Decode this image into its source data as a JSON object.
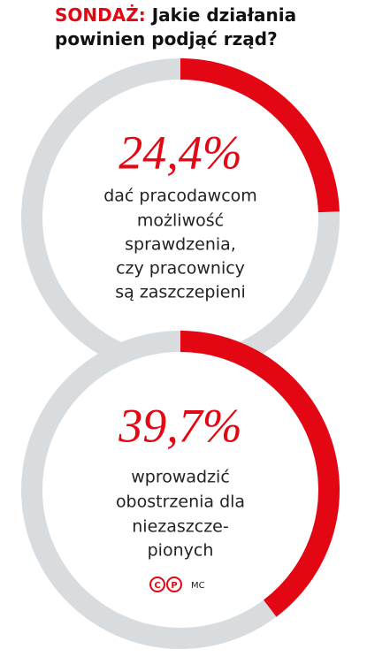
{
  "title_prefix": "SONDAŻ:",
  "title": "Jakie działania powinien podjąć rząd?",
  "chart_data": [
    {
      "type": "donut",
      "values": [
        24.4
      ],
      "value_labels": [
        "24,4%"
      ],
      "color": "#e30613",
      "track_color": "#d9dcdf",
      "label_lines": [
        "dać pracodawcom",
        "możliwość",
        "sprawdzenia,",
        "czy pracownicy",
        "są zaszczepieni"
      ]
    },
    {
      "type": "donut",
      "values": [
        39.7
      ],
      "value_labels": [
        "39,7%"
      ],
      "color": "#e30613",
      "track_color": "#d9dcdf",
      "label_lines": [
        "wprowadzić",
        "obostrzenia dla",
        "niezaszcze-",
        "pionych"
      ]
    }
  ],
  "logo": [
    "C",
    "P"
  ],
  "credit": "MC"
}
